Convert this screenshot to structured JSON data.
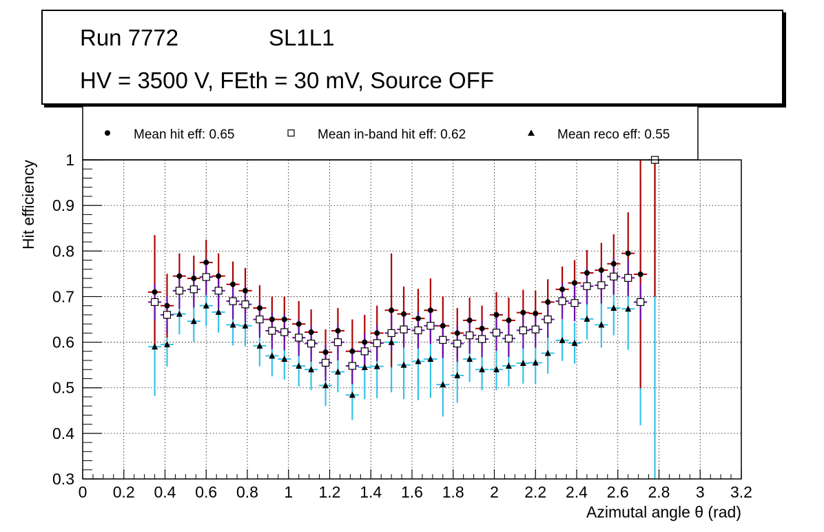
{
  "header": {
    "run": "Run 7772",
    "layer": "SL1L1",
    "conditions": "HV = 3500 V, FEth = 30 mV, Source OFF"
  },
  "legend": {
    "hit": "Mean hit  eff: 0.65",
    "inband": "Mean in-band hit eff: 0.62",
    "reco": "Mean reco eff: 0.55"
  },
  "colors": {
    "hit_error": "#b00000",
    "inband_error": "#6a0dad",
    "reco_error": "#33c2ea",
    "marker": "#000000",
    "grid": "#000000"
  },
  "chart_data": {
    "type": "scatter",
    "xlabel": "Azimutal angle θ (rad)",
    "ylabel": "Hit efficiency",
    "xlim": [
      0,
      3.2
    ],
    "ylim": [
      0.3,
      1.0
    ],
    "grid": true,
    "xticks": [
      "0",
      "0.2",
      "0.4",
      "0.6",
      "0.8",
      "1",
      "1.2",
      "1.4",
      "1.6",
      "1.8",
      "2",
      "2.2",
      "2.4",
      "2.6",
      "2.8",
      "3",
      "3.2"
    ],
    "yticks": [
      "0.3",
      "0.4",
      "0.5",
      "0.6",
      "0.7",
      "0.8",
      "0.9",
      "1"
    ],
    "x": [
      0.35,
      0.41,
      0.47,
      0.54,
      0.6,
      0.66,
      0.73,
      0.79,
      0.86,
      0.92,
      0.98,
      1.05,
      1.11,
      1.18,
      1.24,
      1.31,
      1.37,
      1.43,
      1.5,
      1.56,
      1.63,
      1.69,
      1.75,
      1.82,
      1.88,
      1.94,
      2.01,
      2.07,
      2.14,
      2.2,
      2.26,
      2.33,
      2.39,
      2.45,
      2.52,
      2.58,
      2.65,
      2.71,
      2.78
    ],
    "bin_half_width": 0.032,
    "series": [
      {
        "name": "Mean hit  eff: 0.65",
        "marker": "circle",
        "values": [
          0.71,
          0.68,
          0.745,
          0.74,
          0.775,
          0.745,
          0.727,
          0.713,
          0.675,
          0.65,
          0.65,
          0.64,
          0.622,
          0.578,
          0.625,
          0.58,
          0.6,
          0.62,
          0.67,
          0.662,
          0.652,
          0.67,
          0.636,
          0.62,
          0.648,
          0.63,
          0.66,
          0.648,
          0.665,
          0.663,
          0.688,
          0.716,
          0.73,
          0.752,
          0.758,
          0.772,
          0.795,
          0.749,
          1.0
        ],
        "errors": [
          0.125,
          0.07,
          0.05,
          0.05,
          0.05,
          0.05,
          0.05,
          0.05,
          0.05,
          0.05,
          0.05,
          0.05,
          0.05,
          0.05,
          0.05,
          0.07,
          0.06,
          0.06,
          0.125,
          0.06,
          0.065,
          0.07,
          0.065,
          0.055,
          0.05,
          0.05,
          0.05,
          0.05,
          0.05,
          0.05,
          0.05,
          0.05,
          0.05,
          0.05,
          0.06,
          0.065,
          0.09,
          0.25,
          0.3
        ]
      },
      {
        "name": "Mean in-band hit eff: 0.62",
        "marker": "open-square",
        "values": [
          0.688,
          0.66,
          0.713,
          0.716,
          0.743,
          0.713,
          0.69,
          0.683,
          0.65,
          0.625,
          0.622,
          0.61,
          0.597,
          0.555,
          0.6,
          0.548,
          0.58,
          0.598,
          0.62,
          0.628,
          0.626,
          0.636,
          0.605,
          0.597,
          0.615,
          0.607,
          0.621,
          0.608,
          0.626,
          0.628,
          0.65,
          0.69,
          0.686,
          0.723,
          0.725,
          0.744,
          0.741,
          0.688,
          1.0
        ],
        "errors": [
          0.04,
          0.04,
          0.04,
          0.04,
          0.04,
          0.04,
          0.04,
          0.04,
          0.04,
          0.04,
          0.04,
          0.04,
          0.04,
          0.04,
          0.04,
          0.04,
          0.04,
          0.04,
          0.04,
          0.04,
          0.04,
          0.04,
          0.04,
          0.04,
          0.04,
          0.04,
          0.04,
          0.04,
          0.04,
          0.04,
          0.04,
          0.04,
          0.04,
          0.04,
          0.04,
          0.04,
          0.04,
          0.04,
          0.0
        ]
      },
      {
        "name": "Mean reco eff: 0.55",
        "marker": "triangle",
        "values": [
          0.59,
          0.595,
          0.662,
          0.646,
          0.68,
          0.666,
          0.638,
          0.636,
          0.592,
          0.57,
          0.563,
          0.548,
          0.54,
          0.505,
          0.535,
          0.484,
          0.545,
          0.547,
          0.6,
          0.55,
          0.558,
          0.563,
          0.507,
          0.527,
          0.563,
          0.54,
          0.54,
          0.548,
          0.554,
          0.555,
          0.576,
          0.604,
          0.598,
          0.651,
          0.638,
          0.675,
          0.673,
          0.688,
          1.0
        ],
        "errors": [
          0.108,
          0.048,
          0.045,
          0.045,
          0.045,
          0.045,
          0.045,
          0.045,
          0.045,
          0.045,
          0.045,
          0.045,
          0.045,
          0.045,
          0.045,
          0.055,
          0.07,
          0.07,
          0.11,
          0.075,
          0.085,
          0.085,
          0.07,
          0.06,
          0.05,
          0.045,
          0.045,
          0.045,
          0.045,
          0.045,
          0.045,
          0.045,
          0.045,
          0.045,
          0.05,
          0.06,
          0.09,
          0.27,
          0.7
        ]
      }
    ]
  }
}
